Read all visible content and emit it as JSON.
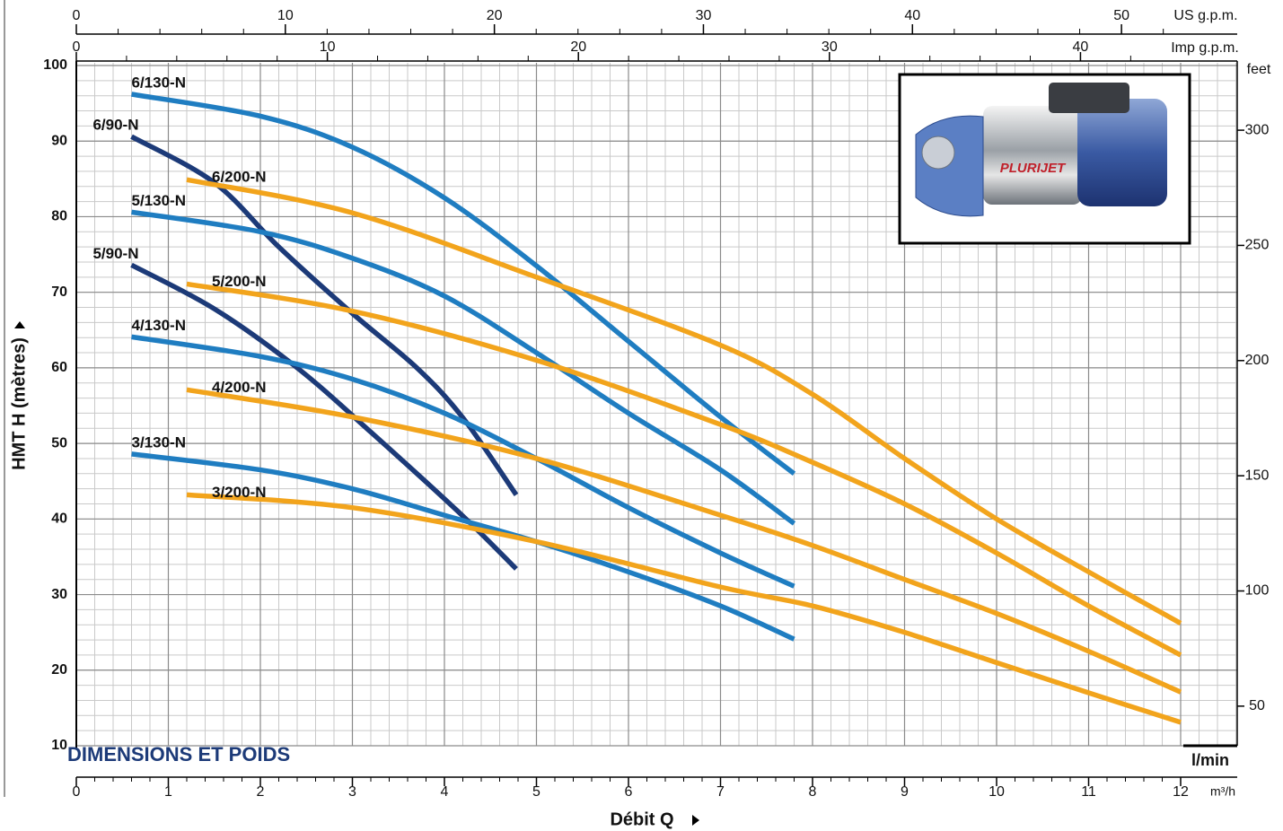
{
  "chart_data": {
    "type": "line",
    "xlabel": "Débit Q",
    "ylabel": "HMT H (mètres)",
    "x_unit_label": "m³/h",
    "alt_x_label": "l/min",
    "x2label": "US g.p.m.",
    "x3label": "Imp g.p.m.",
    "y2label": "feet",
    "annotation": "DIMENSIONS ET POIDS",
    "photo_label": "PLURIJET",
    "xlim": [
      0,
      12
    ],
    "xticks": [
      0,
      1,
      2,
      3,
      4,
      5,
      6,
      7,
      8,
      9,
      10,
      11,
      12
    ],
    "ylim": [
      10,
      100
    ],
    "yticks": [
      10,
      20,
      30,
      40,
      50,
      60,
      70,
      80,
      90,
      100
    ],
    "x2lim": [
      0,
      52.83
    ],
    "x2ticks": [
      0,
      10,
      20,
      30,
      40,
      50
    ],
    "x3lim": [
      0,
      43.99
    ],
    "x3ticks": [
      0,
      10,
      20,
      30,
      40
    ],
    "y2lim": [
      32.81,
      328.08
    ],
    "y2ticks": [
      50,
      100,
      150,
      200,
      250,
      300
    ],
    "grid": true,
    "series": [
      {
        "name": "6/130-N",
        "color": "#1f7dc1",
        "x": [
          0.6,
          2,
          3,
          4,
          5,
          6,
          7,
          7.8
        ],
        "values": [
          96.2,
          93.3,
          89.2,
          82.5,
          73.5,
          63.5,
          53.5,
          46
        ]
      },
      {
        "name": "6/90-N",
        "color": "#1c3a78",
        "x": [
          0.6,
          1.5,
          2.2,
          3,
          3.7,
          4.2,
          4.78
        ],
        "values": [
          90.6,
          84.5,
          76,
          67.2,
          60,
          53.4,
          43.2
        ]
      },
      {
        "name": "6/200-N",
        "color": "#f2a41c",
        "x": [
          1.2,
          3,
          5,
          7,
          8,
          9,
          10,
          11,
          12
        ],
        "values": [
          84.9,
          80.5,
          72,
          63,
          56.5,
          48,
          40,
          33,
          26.2
        ]
      },
      {
        "name": "5/130-N",
        "color": "#1f7dc1",
        "x": [
          0.6,
          2,
          3,
          4,
          5,
          6,
          7,
          7.8
        ],
        "values": [
          80.6,
          78,
          74.5,
          69.5,
          62,
          54,
          46.5,
          39.4
        ]
      },
      {
        "name": "5/90-N",
        "color": "#1c3a78",
        "x": [
          0.6,
          1.5,
          2.4,
          3.2,
          4.2,
          4.78
        ],
        "values": [
          73.6,
          67.8,
          60,
          51.5,
          40.4,
          33.4
        ]
      },
      {
        "name": "5/200-N",
        "color": "#f2a41c",
        "x": [
          1.2,
          3,
          5,
          7,
          8,
          9,
          10,
          11,
          12
        ],
        "values": [
          71.1,
          67.5,
          61,
          52.5,
          47.5,
          42,
          35.5,
          28.5,
          22
        ]
      },
      {
        "name": "4/130-N",
        "color": "#1f7dc1",
        "x": [
          0.6,
          2,
          3,
          4,
          5,
          6,
          7,
          7.8
        ],
        "values": [
          64.1,
          61.5,
          58.5,
          54,
          48,
          41.5,
          35.5,
          31.1
        ]
      },
      {
        "name": "4/200-N",
        "color": "#f2a41c",
        "x": [
          1.2,
          3,
          5,
          7,
          8,
          9,
          10,
          11,
          12
        ],
        "values": [
          57.1,
          53.5,
          48,
          40.5,
          36.5,
          32,
          27.5,
          22.5,
          17.1
        ]
      },
      {
        "name": "3/130-N",
        "color": "#1f7dc1",
        "x": [
          0.6,
          2,
          3,
          4,
          5,
          6,
          7,
          7.8
        ],
        "values": [
          48.6,
          46.5,
          44,
          40.5,
          37,
          33,
          28.5,
          24.1
        ]
      },
      {
        "name": "3/200-N",
        "color": "#f2a41c",
        "x": [
          1.2,
          3,
          5,
          7,
          8,
          9,
          10,
          11,
          12
        ],
        "values": [
          43.2,
          41.5,
          37,
          31,
          28.5,
          25,
          21,
          17,
          13.1
        ]
      }
    ]
  }
}
